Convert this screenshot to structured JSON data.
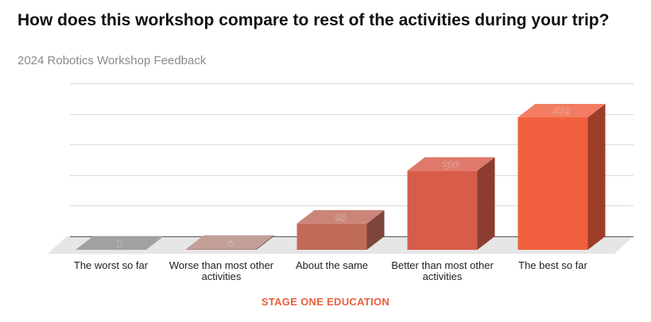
{
  "title": "How does this workshop compare to rest of the activities during your trip?",
  "subtitle": "2024 Robotics Workshop Feedback",
  "footer": "STAGE ONE EDUCATION",
  "chart_data": {
    "type": "bar",
    "title": "How does this workshop compare to rest of the activities during your trip?",
    "subtitle": "2024 Robotics Workshop Feedback",
    "categories": [
      "The worst so far",
      "Worse than most other activities",
      "About the same",
      "Better than most other activities",
      "The best so far"
    ],
    "values": [
      1,
      4,
      95,
      286,
      479
    ],
    "colors": [
      "#8c8c8c",
      "#b58a80",
      "#c06a5a",
      "#d85c4a",
      "#f0603f"
    ],
    "data_labels": [
      "1",
      "4",
      "95",
      "286",
      "479"
    ],
    "ylim": [
      0,
      500
    ],
    "grid": true,
    "legend": "none",
    "xlabel": "",
    "ylabel": ""
  }
}
